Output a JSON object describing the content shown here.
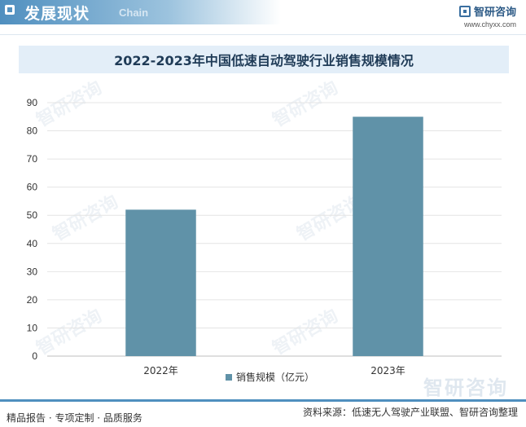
{
  "header": {
    "section_title": "发展现状",
    "section_subtitle": "Chain",
    "brand_name": "智研咨询",
    "brand_url": "www.chyxx.com"
  },
  "title": "2022-2023年中国低速自动驾驶行业销售规模情况",
  "chart_data": {
    "type": "bar",
    "title": "2022-2023年中国低速自动驾驶行业销售规模情况",
    "categories": [
      "2022年",
      "2023年"
    ],
    "series": [
      {
        "name": "销售规模（亿元）",
        "values": [
          52,
          85
        ],
        "color": "#6092a8"
      }
    ],
    "xlabel": "",
    "ylabel": "",
    "ylim": [
      0,
      90
    ],
    "yticks": [
      0,
      10,
      20,
      30,
      40,
      50,
      60,
      70,
      80,
      90
    ],
    "grid": true,
    "legend_position": "bottom"
  },
  "watermark_text": "智研咨询",
  "footer": {
    "left_text": "精品报告 · 专项定制 · 品质服务",
    "source_label": "资料来源：",
    "source_text": "低速无人驾驶产业联盟、智研咨询整理"
  },
  "colors": {
    "accent": "#4f8fbf",
    "bar": "#6092a8",
    "title_bg": "#e3eef8"
  }
}
